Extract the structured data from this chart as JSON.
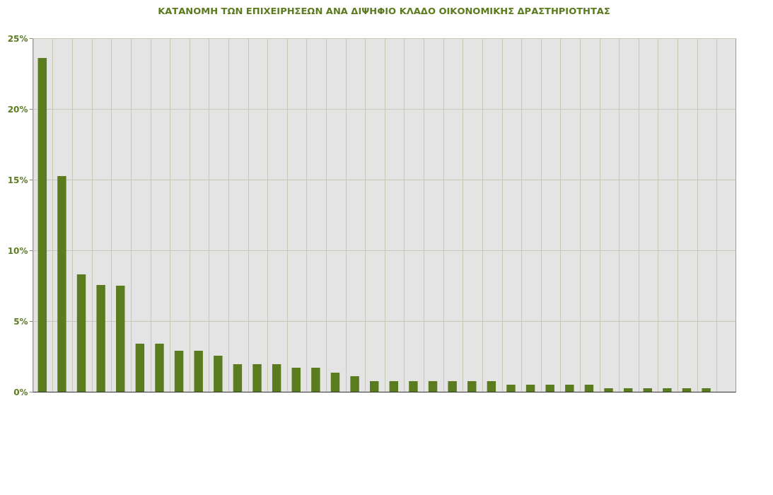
{
  "chart_data": {
    "type": "bar",
    "title": "ΚΑΤΑΝΟΜΗ ΤΩΝ ΕΠΙΧΕΙΡΗΣΕΩΝ ΑΝΑ ΔΙΨΗΦΙΟ ΚΛΑΔΟ ΟΙΚΟΝΟΜΙΚΗΣ ΔΡΑΣΤΗΡΙΟΤΗΤΑΣ",
    "categories": [
      null,
      null,
      null,
      null,
      null,
      null,
      null,
      null,
      null,
      null,
      null,
      null,
      null,
      null,
      null,
      null,
      null,
      null,
      null,
      null,
      null,
      null,
      null,
      null,
      null,
      null,
      null,
      null,
      null,
      null,
      null,
      null,
      null,
      null,
      null,
      null
    ],
    "values": [
      23.6,
      15.25,
      8.3,
      7.55,
      7.5,
      3.4,
      3.4,
      2.9,
      2.9,
      2.55,
      1.95,
      1.95,
      1.95,
      1.7,
      1.7,
      1.35,
      1.1,
      0.75,
      0.75,
      0.75,
      0.75,
      0.75,
      0.75,
      0.75,
      0.5,
      0.5,
      0.5,
      0.5,
      0.5,
      0.25,
      0.25,
      0.25,
      0.25,
      0.25,
      0.25,
      0
    ],
    "color": "#5b7b1f",
    "ylim": [
      0,
      25
    ],
    "yticks": [
      {
        "value": 0,
        "label": "0%"
      },
      {
        "value": 5,
        "label": "5%"
      },
      {
        "value": 10,
        "label": "10%"
      },
      {
        "value": 15,
        "label": "15%"
      },
      {
        "value": 20,
        "label": "20%"
      },
      {
        "value": 25,
        "label": "25%"
      }
    ],
    "grid": true
  }
}
